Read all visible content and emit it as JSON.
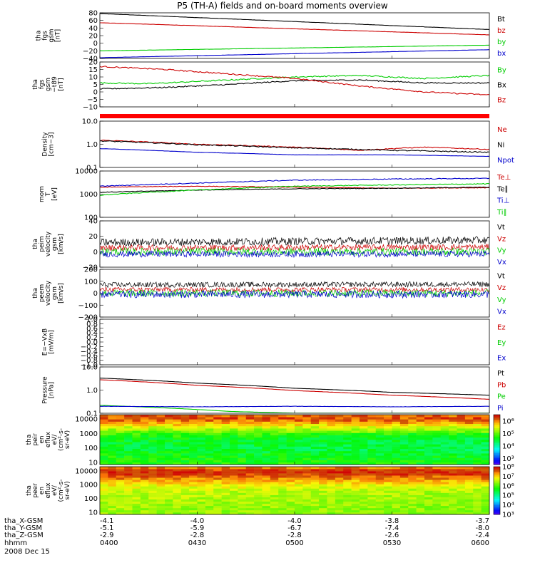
{
  "title": "P5 (TH-A) fields and on-board moments overview",
  "time": {
    "date": "2008 Dec 15",
    "ticks": [
      "0400",
      "0430",
      "0500",
      "0530",
      "0600"
    ]
  },
  "ephemeris": {
    "rows": [
      {
        "label": "tha_X-GSM",
        "values": [
          "-4.1",
          "-4.0",
          "-4.0",
          "-3.8",
          "-3.7"
        ]
      },
      {
        "label": "tha_Y-GSM",
        "values": [
          "-5.1",
          "-5.9",
          "-6.7",
          "-7.4",
          "-8.0"
        ]
      },
      {
        "label": "tha_Z-GSM",
        "values": [
          "-2.9",
          "-2.8",
          "-2.8",
          "-2.6",
          "-2.4"
        ]
      },
      {
        "label": "hhmm",
        "values": []
      }
    ]
  },
  "colors": {
    "black": "#000000",
    "red": "#cc0000",
    "green": "#00cc00",
    "blue": "#0000cc"
  },
  "chart_data": [
    {
      "type": "line",
      "name": "fgs_gsm",
      "ylabel": [
        "tha",
        "fgs",
        "gsm",
        "[nT]"
      ],
      "ylim": [
        -40,
        80
      ],
      "yticks": [
        {
          "v": 80,
          "t": "80"
        },
        {
          "v": 60,
          "t": "60"
        },
        {
          "v": 40,
          "t": "40"
        },
        {
          "v": 20,
          "t": "20"
        },
        {
          "v": 0,
          "t": "0"
        },
        {
          "v": -20,
          "t": "−20"
        },
        {
          "v": -40,
          "t": "−40"
        }
      ],
      "series": [
        {
          "name": "Bt",
          "color": "#000000",
          "x": [
            0,
            120
          ],
          "y": [
            78,
            36
          ],
          "noise": 0.3
        },
        {
          "name": "bz",
          "color": "#cc0000",
          "x": [
            0,
            120
          ],
          "y": [
            54,
            22
          ],
          "noise": 0.3
        },
        {
          "name": "by",
          "color": "#00cc00",
          "x": [
            0,
            120
          ],
          "y": [
            -20,
            -5
          ],
          "noise": 0.2
        },
        {
          "name": "bx",
          "color": "#0000cc",
          "x": [
            0,
            120
          ],
          "y": [
            -38,
            -17
          ],
          "noise": 0.2
        }
      ],
      "legend": [
        "Bt",
        "bz",
        "by",
        "bx"
      ]
    },
    {
      "type": "line",
      "name": "fgs_dt89",
      "ylabel": [
        "tha",
        "fgs",
        "gsm",
        "−t89",
        "[nT]"
      ],
      "ylim": [
        -10,
        20
      ],
      "yticks": [
        {
          "v": 20,
          "t": "20"
        },
        {
          "v": 15,
          "t": "15"
        },
        {
          "v": 10,
          "t": "10"
        },
        {
          "v": 5,
          "t": "5"
        },
        {
          "v": 0,
          "t": "0"
        },
        {
          "v": -5,
          "t": "−5"
        },
        {
          "v": -10,
          "t": "−10"
        }
      ],
      "series": [
        {
          "name": "By",
          "color": "#00cc00",
          "x": [
            0,
            15,
            30,
            60,
            80,
            100,
            120
          ],
          "y": [
            6,
            5.5,
            7,
            10,
            11,
            9,
            11
          ],
          "noise": 0.4
        },
        {
          "name": "Bx",
          "color": "#000000",
          "x": [
            0,
            20,
            40,
            60,
            80,
            100,
            120
          ],
          "y": [
            2,
            3,
            5,
            7.5,
            8,
            6,
            6
          ],
          "noise": 0.4
        },
        {
          "name": "Bz",
          "color": "#cc0000",
          "x": [
            0,
            20,
            40,
            60,
            80,
            100,
            120
          ],
          "y": [
            17,
            15,
            12,
            9,
            4,
            0,
            -2
          ],
          "noise": 0.4
        }
      ],
      "legend": [
        "By",
        "Bx",
        "Bz"
      ]
    },
    {
      "type": "line",
      "name": "density",
      "scale": "log",
      "ylabel": [
        "Density",
        "[cm−3]"
      ],
      "ylim": [
        0.1,
        10
      ],
      "yticks": [
        {
          "v": 10,
          "t": "10.0"
        },
        {
          "v": 1,
          "t": "1.0"
        },
        {
          "v": 0.1,
          "t": "0.1"
        }
      ],
      "series": [
        {
          "name": "Ne",
          "color": "#cc0000",
          "x": [
            0,
            30,
            60,
            80,
            100,
            120
          ],
          "y": [
            1.5,
            1.0,
            0.75,
            0.55,
            0.75,
            0.6
          ],
          "noise": 0.04
        },
        {
          "name": "Ni",
          "color": "#000000",
          "x": [
            0,
            30,
            60,
            90,
            120
          ],
          "y": [
            1.4,
            0.95,
            0.7,
            0.55,
            0.45
          ],
          "noise": 0.05
        },
        {
          "name": "Npot",
          "color": "#0000cc",
          "x": [
            0,
            30,
            60,
            90,
            120
          ],
          "y": [
            0.65,
            0.45,
            0.35,
            0.35,
            0.3
          ],
          "noise": 0.01
        }
      ],
      "legend": [
        "Ne",
        "Ni",
        "Npot"
      ]
    },
    {
      "type": "line",
      "name": "temperature",
      "scale": "log",
      "ylabel": [
        "mom",
        "T",
        "[eV]"
      ],
      "ylim": [
        100,
        10000
      ],
      "yticks": [
        {
          "v": 10000,
          "t": "10000"
        },
        {
          "v": 1000,
          "t": "1000"
        },
        {
          "v": 100,
          "t": "100"
        }
      ],
      "series": [
        {
          "name": "Te⊥",
          "color": "#cc0000",
          "x": [
            0,
            30,
            60,
            90,
            120
          ],
          "y": [
            2000,
            2200,
            2000,
            1800,
            1900
          ],
          "noise": 0.03
        },
        {
          "name": "Te∥",
          "color": "#000000",
          "x": [
            0,
            30,
            60,
            90,
            120
          ],
          "y": [
            1200,
            1500,
            1700,
            1800,
            2000
          ],
          "noise": 0.03
        },
        {
          "name": "Ti⊥",
          "color": "#0000cc",
          "x": [
            0,
            30,
            60,
            90,
            120
          ],
          "y": [
            2200,
            3000,
            4000,
            4500,
            4800
          ],
          "noise": 0.04
        },
        {
          "name": "Ti∥",
          "color": "#00cc00",
          "x": [
            0,
            30,
            60,
            90,
            120
          ],
          "y": [
            900,
            1500,
            2200,
            2500,
            2800
          ],
          "noise": 0.04
        }
      ],
      "legend": [
        "Te⊥",
        "Te∥",
        "Ti⊥",
        "Ti∥"
      ]
    },
    {
      "type": "line",
      "name": "peim_velocity",
      "ylabel": [
        "tha",
        "peim",
        "velocity",
        "gsm",
        "[km/s]"
      ],
      "ylim": [
        -20,
        40
      ],
      "yticks": [
        {
          "v": 40,
          "t": "40"
        },
        {
          "v": 20,
          "t": "20"
        },
        {
          "v": 0,
          "t": "0"
        },
        {
          "v": -20,
          "t": "−20"
        }
      ],
      "series": [
        {
          "name": "Vt",
          "color": "#000000",
          "x": [
            0,
            120
          ],
          "y": [
            12,
            15
          ],
          "noise": 5
        },
        {
          "name": "Vz",
          "color": "#cc0000",
          "x": [
            0,
            120
          ],
          "y": [
            5,
            6
          ],
          "noise": 4
        },
        {
          "name": "Vy",
          "color": "#00cc00",
          "x": [
            0,
            120
          ],
          "y": [
            0,
            0
          ],
          "noise": 5
        },
        {
          "name": "Vx",
          "color": "#0000cc",
          "x": [
            0,
            120
          ],
          "y": [
            -3,
            -3
          ],
          "noise": 4
        }
      ],
      "legend": [
        "Vt",
        "Vz",
        "Vy",
        "Vx"
      ]
    },
    {
      "type": "line",
      "name": "peem_velocity",
      "ylabel": [
        "tha",
        "peem",
        "velocity",
        "gsm",
        "[km/s]"
      ],
      "ylim": [
        -200,
        200
      ],
      "yticks": [
        {
          "v": 200,
          "t": "200"
        },
        {
          "v": 100,
          "t": "100"
        },
        {
          "v": 0,
          "t": "0"
        },
        {
          "v": -100,
          "t": "−100"
        },
        {
          "v": -200,
          "t": "−200"
        }
      ],
      "series": [
        {
          "name": "Vt",
          "color": "#000000",
          "x": [
            0,
            120
          ],
          "y": [
            70,
            75
          ],
          "noise": 22
        },
        {
          "name": "Vz",
          "color": "#cc0000",
          "x": [
            0,
            120
          ],
          "y": [
            30,
            30
          ],
          "noise": 20
        },
        {
          "name": "Vy",
          "color": "#00cc00",
          "x": [
            0,
            120
          ],
          "y": [
            0,
            0
          ],
          "noise": 30
        },
        {
          "name": "Vx",
          "color": "#0000cc",
          "x": [
            0,
            120
          ],
          "y": [
            -10,
            -10
          ],
          "noise": 30
        }
      ],
      "legend": [
        "Vt",
        "Vz",
        "Vy",
        "Vx"
      ]
    },
    {
      "type": "line",
      "name": "efield",
      "ylabel": [
        "E=−VxB",
        "[mV/m]"
      ],
      "ylim": [
        -1,
        1
      ],
      "yticks": [
        {
          "v": 1.0,
          "t": "1.0"
        },
        {
          "v": 0.8,
          "t": "0.8"
        },
        {
          "v": 0.6,
          "t": "0.6"
        },
        {
          "v": 0.4,
          "t": "0.4"
        },
        {
          "v": 0.2,
          "t": "0.2"
        },
        {
          "v": 0,
          "t": "0.0"
        },
        {
          "v": -0.2,
          "t": "−0.2"
        },
        {
          "v": -0.4,
          "t": "−0.4"
        },
        {
          "v": -0.6,
          "t": "−0.6"
        },
        {
          "v": -0.8,
          "t": "−0.8"
        },
        {
          "v": -1.0,
          "t": "−1.0"
        }
      ],
      "series": [],
      "legend": [
        "Ez",
        "Ey",
        "Ex"
      ]
    },
    {
      "type": "line",
      "name": "pressure",
      "scale": "log",
      "ylabel": [
        "Pressure",
        "[nPa]"
      ],
      "ylim": [
        0.1,
        10
      ],
      "yticks": [
        {
          "v": 10,
          "t": "10.0"
        },
        {
          "v": 1,
          "t": "1.0"
        },
        {
          "v": 0.1,
          "t": "0.1"
        }
      ],
      "series": [
        {
          "name": "Pt",
          "color": "#000000",
          "x": [
            0,
            30,
            60,
            90,
            120
          ],
          "y": [
            3.3,
            2.0,
            1.2,
            0.8,
            0.6
          ],
          "noise": 0.005
        },
        {
          "name": "Pb",
          "color": "#cc0000",
          "x": [
            0,
            30,
            60,
            90,
            120
          ],
          "y": [
            2.8,
            1.6,
            0.95,
            0.6,
            0.4
          ],
          "noise": 0.005
        },
        {
          "name": "Pe",
          "color": "#00cc00",
          "x": [
            0,
            20,
            40,
            60,
            120
          ],
          "y": [
            0.22,
            0.17,
            0.12,
            0.1,
            0.09
          ],
          "noise": 0.003
        },
        {
          "name": "Pi",
          "color": "#0000cc",
          "x": [
            0,
            30,
            60,
            90,
            120
          ],
          "y": [
            0.2,
            0.19,
            0.2,
            0.19,
            0.2
          ],
          "noise": 0.01
        }
      ],
      "legend": [
        "Pt",
        "Pb",
        "Pe",
        "Pi"
      ]
    },
    {
      "type": "heatmap",
      "name": "peir_en_eflux",
      "scale": "log",
      "ylabel": [
        "tha",
        "peir",
        "en",
        "eflux",
        "eV/",
        "(cm²-s-",
        "sr-eV)"
      ],
      "ylim": [
        7,
        20000
      ],
      "yticks": [
        {
          "v": 10000,
          "t": "10000"
        },
        {
          "v": 1000,
          "t": "1000"
        },
        {
          "v": 100,
          "t": "100"
        },
        {
          "v": 10,
          "t": "10"
        }
      ],
      "colorbar": {
        "ticks": [
          {
            "v": 3,
            "t": "10³"
          },
          {
            "v": 4,
            "t": "10⁴"
          },
          {
            "v": 5,
            "t": "10⁵"
          },
          {
            "v": 6,
            "t": "10⁶"
          }
        ],
        "range": [
          2.5,
          6.5
        ]
      },
      "energy_profile": {
        "log_e": [
          0.9,
          2.0,
          2.6,
          3.0,
          3.4,
          3.8,
          4.1,
          4.3
        ],
        "log_flux": [
          4.8,
          4.5,
          4.6,
          4.9,
          5.4,
          6.0,
          6.2,
          6.1
        ]
      }
    },
    {
      "type": "heatmap",
      "name": "peer_en_eflux",
      "scale": "log",
      "ylabel": [
        "tha",
        "peer",
        "en",
        "eflux",
        "eV/",
        "(cm²-s-",
        "sr-eV)"
      ],
      "ylim": [
        7,
        20000
      ],
      "yticks": [
        {
          "v": 10000,
          "t": "10000"
        },
        {
          "v": 1000,
          "t": "1000"
        },
        {
          "v": 100,
          "t": "100"
        },
        {
          "v": 10,
          "t": "10"
        }
      ],
      "colorbar": {
        "ticks": [
          {
            "v": 3,
            "t": "10³"
          },
          {
            "v": 4,
            "t": "10⁴"
          },
          {
            "v": 5,
            "t": "10⁵"
          },
          {
            "v": 6,
            "t": "10⁶"
          },
          {
            "v": 7,
            "t": "10⁷"
          },
          {
            "v": 8,
            "t": "10⁸"
          }
        ],
        "range": [
          3,
          8
        ]
      },
      "energy_profile": {
        "log_e": [
          0.9,
          1.8,
          2.5,
          3.0,
          3.4,
          3.7,
          4.0,
          4.3
        ],
        "log_flux": [
          6.4,
          6.5,
          6.6,
          6.9,
          7.3,
          7.7,
          7.8,
          7.3
        ]
      }
    }
  ]
}
